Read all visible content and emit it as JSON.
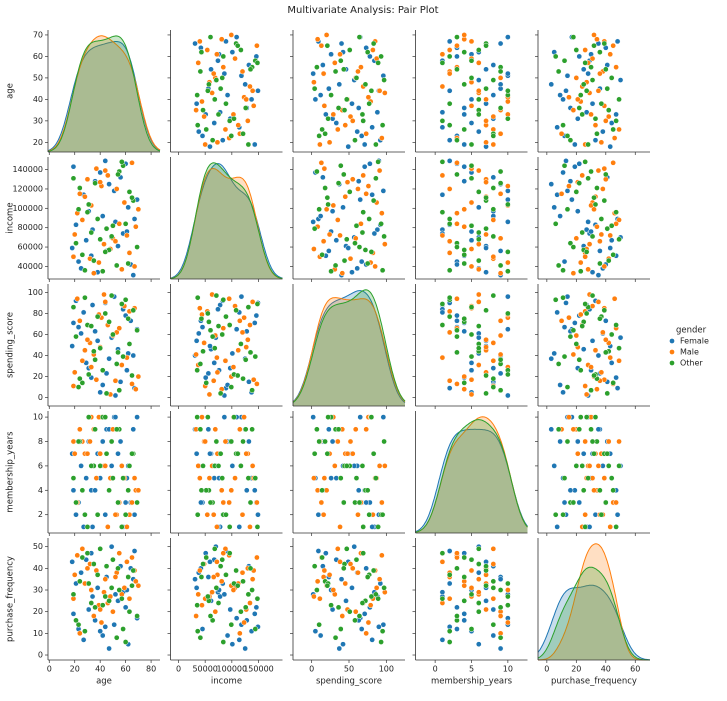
{
  "chart_data": {
    "type": "pairplot",
    "title": "Multivariate Analysis: Pair Plot",
    "legend_title": "gender",
    "legend": "right",
    "axes": [
      {
        "name": "age",
        "xlim": [
          -1,
          87
        ],
        "xticks": [
          0,
          20,
          40,
          60,
          80
        ],
        "ylim": [
          15.5,
          72.3
        ],
        "yticks": [
          20,
          30,
          40,
          50,
          60,
          70
        ]
      },
      {
        "name": "income",
        "xlim": [
          -15000,
          195000
        ],
        "xticks": [
          0,
          50000,
          100000,
          150000
        ],
        "ylim": [
          27000,
          153000
        ],
        "yticks": [
          40000,
          60000,
          80000,
          100000,
          120000,
          140000
        ]
      },
      {
        "name": "spending_score",
        "xlim": [
          -25,
          125
        ],
        "xticks": [
          0,
          50,
          100
        ],
        "ylim": [
          -8,
          108
        ],
        "yticks": [
          0,
          20,
          40,
          60,
          80,
          100
        ]
      },
      {
        "name": "membership_years",
        "xlim": [
          -2.7,
          12.7
        ],
        "xticks": [
          0,
          5,
          10
        ],
        "ylim": [
          0.5,
          10.5
        ],
        "yticks": [
          2,
          4,
          6,
          8,
          10
        ]
      },
      {
        "name": "purchase_frequency",
        "xlim": [
          -6,
          70
        ],
        "xticks": [
          0,
          20,
          40,
          60
        ],
        "ylim": [
          -2.3,
          54
        ],
        "yticks": [
          0,
          10,
          20,
          30,
          40,
          50
        ]
      }
    ],
    "series": [
      {
        "name": "Female",
        "color": "#1f77b4",
        "values": [
          [
            23,
            45000,
            67,
            3,
            12
          ],
          [
            56,
            132000,
            15,
            8,
            41
          ],
          [
            34,
            78000,
            88,
            1,
            27
          ],
          [
            62,
            101000,
            42,
            6,
            5
          ],
          [
            45,
            56000,
            23,
            9,
            36
          ],
          [
            19,
            143000,
            71,
            4,
            19
          ],
          [
            67,
            89000,
            9,
            2,
            48
          ],
          [
            38,
            34000,
            54,
            7,
            31
          ],
          [
            51,
            118000,
            96,
            10,
            14
          ],
          [
            29,
            67000,
            33,
            5,
            44
          ],
          [
            60,
            146000,
            78,
            3,
            22
          ],
          [
            42,
            92000,
            12,
            8,
            9
          ],
          [
            25,
            38000,
            61,
            6,
            38
          ],
          [
            58,
            74000,
            84,
            1,
            29
          ],
          [
            47,
            125000,
            37,
            9,
            3
          ],
          [
            33,
            51000,
            19,
            4,
            47
          ],
          [
            69,
            109000,
            65,
            10,
            17
          ],
          [
            21,
            83000,
            92,
            2,
            33
          ],
          [
            54,
            61000,
            46,
            7,
            25
          ],
          [
            40,
            137000,
            5,
            5,
            11
          ],
          [
            64,
            42000,
            73,
            3,
            40
          ],
          [
            31,
            97000,
            28,
            8,
            21
          ],
          [
            49,
            70000,
            57,
            6,
            50
          ],
          [
            27,
            114000,
            81,
            1,
            7
          ],
          [
            66,
            31000,
            40,
            9,
            35
          ],
          [
            36,
            128000,
            63,
            4,
            16
          ],
          [
            52,
            86000,
            2,
            10,
            28
          ],
          [
            18,
            59000,
            49,
            7,
            43
          ],
          [
            44,
            149000,
            90,
            2,
            13
          ],
          [
            61,
            76000,
            26,
            5,
            30
          ]
        ]
      },
      {
        "name": "Male",
        "color": "#ff7f0e",
        "values": [
          [
            28,
            112000,
            45,
            7,
            33
          ],
          [
            63,
            54000,
            82,
            2,
            26
          ],
          [
            37,
            141000,
            17,
            5,
            39
          ],
          [
            50,
            69000,
            59,
            9,
            20
          ],
          [
            22,
            95000,
            94,
            3,
            46
          ],
          [
            57,
            37000,
            31,
            6,
            28
          ],
          [
            41,
            123000,
            76,
            10,
            15
          ],
          [
            68,
            81000,
            8,
            4,
            34
          ],
          [
            32,
            48000,
            52,
            8,
            42
          ],
          [
            46,
            134000,
            69,
            1,
            24
          ],
          [
            20,
            73000,
            24,
            7,
            37
          ],
          [
            59,
            106000,
            87,
            5,
            31
          ],
          [
            35,
            33000,
            41,
            9,
            18
          ],
          [
            65,
            147000,
            13,
            3,
            45
          ],
          [
            43,
            63000,
            98,
            6,
            29
          ],
          [
            26,
            88000,
            35,
            8,
            49
          ],
          [
            53,
            120000,
            62,
            2,
            38
          ],
          [
            39,
            44000,
            79,
            10,
            23
          ],
          [
            70,
            99000,
            20,
            4,
            32
          ],
          [
            30,
            130000,
            55,
            7,
            40
          ],
          [
            48,
            58000,
            3,
            5,
            27
          ],
          [
            24,
            115000,
            73,
            9,
            10
          ],
          [
            61,
            72000,
            38,
            1,
            43
          ],
          [
            44,
            139000,
            91,
            6,
            35
          ],
          [
            19,
            50000,
            11,
            8,
            26
          ],
          [
            55,
            84000,
            66,
            3,
            47
          ],
          [
            33,
            103000,
            29,
            10,
            30
          ],
          [
            67,
            40000,
            85,
            5,
            39
          ],
          [
            40,
            127000,
            48,
            7,
            21
          ],
          [
            52,
            66000,
            16,
            2,
            36
          ]
        ]
      },
      {
        "name": "Other",
        "color": "#2ca02c",
        "values": [
          [
            47,
            57000,
            72,
            4,
            25
          ],
          [
            24,
            121000,
            18,
            8,
            34
          ],
          [
            60,
            84000,
            93,
            2,
            6
          ],
          [
            35,
            46000,
            44,
            6,
            42
          ],
          [
            55,
            138000,
            7,
            9,
            30
          ],
          [
            21,
            64000,
            58,
            3,
            16
          ],
          [
            66,
            108000,
            83,
            7,
            39
          ],
          [
            42,
            35000,
            26,
            10,
            23
          ],
          [
            30,
            96000,
            69,
            1,
            47
          ],
          [
            58,
            144000,
            39,
            5,
            12
          ],
          [
            49,
            71000,
            97,
            8,
            31
          ],
          [
            26,
            52000,
            14,
            4,
            45
          ],
          [
            63,
            117000,
            51,
            6,
            20
          ],
          [
            38,
            89000,
            77,
            2,
            37
          ],
          [
            53,
            41000,
            32,
            9,
            8
          ],
          [
            19,
            131000,
            86,
            5,
            28
          ],
          [
            45,
            79000,
            4,
            7,
            41
          ],
          [
            69,
            60000,
            64,
            3,
            18
          ],
          [
            31,
            104000,
            22,
            10,
            33
          ],
          [
            57,
            148000,
            89,
            1,
            26
          ],
          [
            40,
            68000,
            47,
            6,
            49
          ],
          [
            23,
            99000,
            10,
            8,
            14
          ],
          [
            62,
            43000,
            75,
            4,
            36
          ],
          [
            36,
            126000,
            36,
            9,
            22
          ],
          [
            50,
            82000,
            60,
            5,
            44
          ],
          [
            28,
            36000,
            95,
            2,
            11
          ],
          [
            65,
            111000,
            21,
            7,
            32
          ],
          [
            44,
            55000,
            80,
            10,
            27
          ],
          [
            54,
            135000,
            43,
            3,
            40
          ],
          [
            33,
            75000,
            68,
            6,
            24
          ]
        ]
      }
    ]
  }
}
